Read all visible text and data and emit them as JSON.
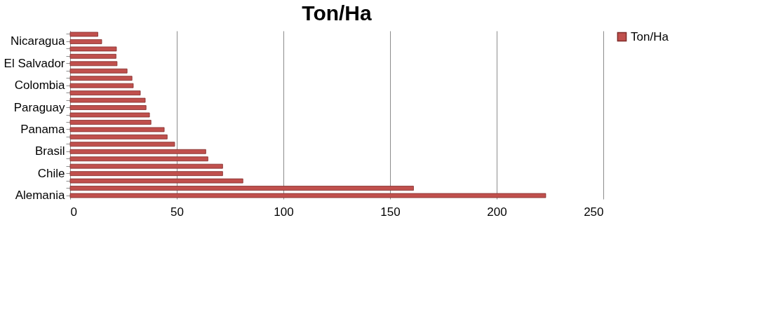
{
  "chart_data": {
    "type": "bar",
    "title": "Ton/Ha",
    "orientation": "horizontal",
    "categories": [
      null,
      "Nicaragua",
      null,
      null,
      "El Salvador",
      null,
      null,
      "Colombia",
      null,
      null,
      "Paraguay",
      null,
      null,
      "Panama",
      null,
      null,
      "Brasil",
      null,
      null,
      "Chile",
      null,
      null,
      "Alemania"
    ],
    "series": [
      {
        "name": "Ton/Ha",
        "color": "#c0504d",
        "values": [
          13,
          14.8,
          21.7,
          21.5,
          22,
          26.7,
          29,
          29.6,
          32.9,
          35.2,
          35.6,
          37.2,
          37.9,
          44.1,
          45.5,
          49,
          63.6,
          64.6,
          71.5,
          71.5,
          81,
          161,
          223
        ]
      }
    ],
    "xlim": [
      0,
      250
    ],
    "xticks": [
      0,
      50,
      100,
      150,
      200,
      250
    ],
    "grid": "x",
    "legend": "right"
  }
}
